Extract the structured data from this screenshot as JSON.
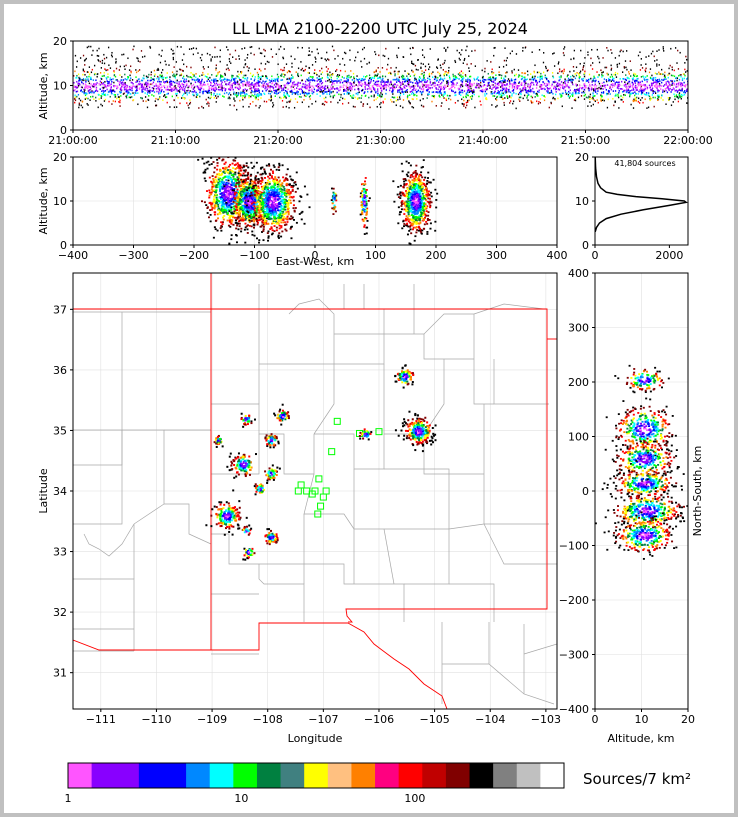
{
  "title": "LL LMA 2100-2200 UTC July 25, 2024",
  "chart_data": [
    {
      "type": "scatter",
      "panel": "altitude-time",
      "ylabel": "Altitude, km",
      "xlabel": "",
      "xlim": [
        "21:00:00",
        "22:00:00"
      ],
      "ylim": [
        0,
        20
      ],
      "x_ticks": [
        "21:00:00",
        "21:10:00",
        "21:20:00",
        "21:30:00",
        "21:40:00",
        "21:50:00",
        "22:00:00"
      ],
      "y_ticks": [
        "0",
        "10",
        "20"
      ],
      "band": {
        "center_km": 10,
        "halfwidth_km": 3,
        "outer_km": [
          5,
          19
        ]
      }
    },
    {
      "type": "scatter",
      "panel": "east-west-altitude",
      "xlabel": "East-West, km",
      "ylabel": "Altitude, km",
      "xlim": [
        -400,
        400
      ],
      "ylim": [
        0,
        20
      ],
      "x_ticks": [
        "−400",
        "−300",
        "−200",
        "−100",
        "0",
        "100",
        "200",
        "300",
        "400"
      ],
      "y_ticks": [
        "0",
        "10",
        "20"
      ],
      "clusters": [
        {
          "x": -145,
          "z": 12,
          "sx": 18,
          "sz": 4,
          "n": 230
        },
        {
          "x": -110,
          "z": 10,
          "sx": 14,
          "sz": 3,
          "n": 180
        },
        {
          "x": -70,
          "z": 10,
          "sx": 18,
          "sz": 3.5,
          "n": 240
        },
        {
          "x": 30,
          "z": 10.5,
          "sx": 2,
          "sz": 1.5,
          "n": 12
        },
        {
          "x": 80,
          "z": 10,
          "sx": 3,
          "sz": 3,
          "n": 30
        },
        {
          "x": 165,
          "z": 10,
          "sx": 12,
          "sz": 3.5,
          "n": 220
        }
      ]
    },
    {
      "type": "line",
      "panel": "altitude-histogram",
      "annotation": "41,804 sources",
      "xlim": [
        0,
        2500
      ],
      "ylim": [
        0,
        20
      ],
      "x_ticks": [
        "0",
        "2000"
      ],
      "y_ticks": [
        "0",
        "10",
        "20"
      ],
      "x": [
        5,
        40,
        120,
        300,
        700,
        1300,
        2000,
        2450,
        2400,
        1800,
        1100,
        600,
        300,
        150,
        80,
        40,
        15,
        5
      ],
      "y": [
        3,
        4,
        5,
        6,
        7,
        8,
        9,
        9.7,
        10,
        10.5,
        11,
        11.5,
        12,
        13,
        14,
        15.5,
        17.5,
        20
      ]
    },
    {
      "type": "map",
      "panel": "plan-view",
      "xlabel": "Longitude",
      "ylabel": "Latitude",
      "xlim": [
        -111.5,
        -102.8
      ],
      "ylim": [
        30.4,
        37.6
      ],
      "x_ticks": [
        "−111",
        "−110",
        "−109",
        "−108",
        "−107",
        "−106",
        "−105",
        "−104",
        "−103"
      ],
      "y_ticks": [
        "31",
        "32",
        "33",
        "34",
        "35",
        "36",
        "37"
      ],
      "clusters": [
        {
          "lon": -105.3,
          "lat": 35.0,
          "s": 0.12,
          "n": 120
        },
        {
          "lon": -105.55,
          "lat": 35.9,
          "s": 0.08,
          "n": 40
        },
        {
          "lon": -106.25,
          "lat": 34.95,
          "s": 0.05,
          "n": 15
        },
        {
          "lon": -107.75,
          "lat": 35.25,
          "s": 0.06,
          "n": 30
        },
        {
          "lon": -107.95,
          "lat": 34.85,
          "s": 0.06,
          "n": 25
        },
        {
          "lon": -108.4,
          "lat": 35.2,
          "s": 0.05,
          "n": 20
        },
        {
          "lon": -108.45,
          "lat": 34.45,
          "s": 0.1,
          "n": 60
        },
        {
          "lon": -108.15,
          "lat": 34.05,
          "s": 0.05,
          "n": 20
        },
        {
          "lon": -107.95,
          "lat": 34.3,
          "s": 0.06,
          "n": 25
        },
        {
          "lon": -108.75,
          "lat": 33.6,
          "s": 0.12,
          "n": 90
        },
        {
          "lon": -107.95,
          "lat": 33.25,
          "s": 0.06,
          "n": 35
        },
        {
          "lon": -108.4,
          "lat": 33.35,
          "s": 0.04,
          "n": 12
        },
        {
          "lon": -108.35,
          "lat": 33.0,
          "s": 0.05,
          "n": 15
        },
        {
          "lon": -108.9,
          "lat": 34.85,
          "s": 0.04,
          "n": 15
        }
      ],
      "stations": [
        {
          "lon": -107.45,
          "lat": 34.0
        },
        {
          "lon": -107.3,
          "lat": 34.0
        },
        {
          "lon": -107.4,
          "lat": 34.1
        },
        {
          "lon": -107.15,
          "lat": 34.0
        },
        {
          "lon": -107.08,
          "lat": 34.2
        },
        {
          "lon": -107.0,
          "lat": 33.9
        },
        {
          "lon": -107.05,
          "lat": 33.75
        },
        {
          "lon": -106.95,
          "lat": 34.0
        },
        {
          "lon": -107.2,
          "lat": 33.95
        },
        {
          "lon": -106.85,
          "lat": 34.65
        },
        {
          "lon": -106.75,
          "lat": 35.15
        },
        {
          "lon": -106.35,
          "lat": 34.95
        },
        {
          "lon": -106.0,
          "lat": 34.98
        },
        {
          "lon": -107.1,
          "lat": 33.62
        }
      ]
    },
    {
      "type": "scatter",
      "panel": "altitude-north-south",
      "xlabel": "Altitude, km",
      "ylabel": "North-South, km",
      "xlim": [
        0,
        20
      ],
      "ylim": [
        -400,
        400
      ],
      "x_ticks": [
        "0",
        "10",
        "20"
      ],
      "y_ticks": [
        "−400",
        "−300",
        "−200",
        "−100",
        "0",
        "100",
        "200",
        "300",
        "400"
      ],
      "clusters": [
        {
          "z": 10.5,
          "y": 205,
          "sz": 2,
          "sy": 10,
          "n": 60
        },
        {
          "z": 10.5,
          "y": 115,
          "sz": 3,
          "sy": 20,
          "n": 160
        },
        {
          "z": 10.5,
          "y": 60,
          "sz": 3,
          "sy": 15,
          "n": 140
        },
        {
          "z": 10.5,
          "y": 15,
          "sz": 3,
          "sy": 12,
          "n": 140
        },
        {
          "z": 11,
          "y": -35,
          "sz": 3.5,
          "sy": 15,
          "n": 180
        },
        {
          "z": 10.5,
          "y": -80,
          "sz": 3,
          "sy": 15,
          "n": 160
        }
      ]
    }
  ],
  "colorbar": {
    "label": "Sources/7 km²",
    "ticks": [
      "1",
      "10",
      "100"
    ],
    "colors": [
      "#ff55ff",
      "#8800ff",
      "#8800ff",
      "#0000ff",
      "#0000ff",
      "#0088ff",
      "#00ffff",
      "#00ff00",
      "#008040",
      "#408080",
      "#ffff00",
      "#ffc080",
      "#ff8000",
      "#ff0080",
      "#ff0000",
      "#c00000",
      "#800000",
      "#000000",
      "#808080",
      "#c0c0c0",
      "#ffffff"
    ]
  },
  "colors": {
    "state_border": "#ff0000",
    "county_lines": "#a0a0a0",
    "stations": "#00ff00",
    "grid": "#e0e0e0"
  }
}
